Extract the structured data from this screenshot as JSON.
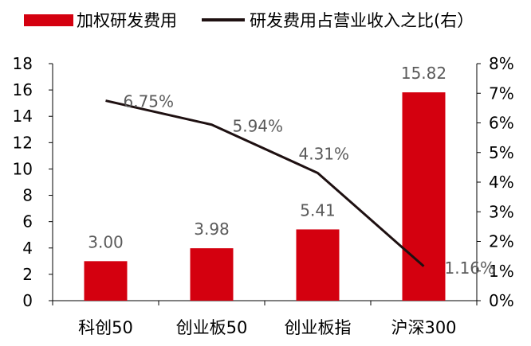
{
  "legend": {
    "bar_label": "加权研发费用",
    "line_label": "研发费用占营业收入之比(右）"
  },
  "colors": {
    "bar": "#d4000f",
    "line": "#1e1011",
    "axis": "#000000",
    "data_label": "#5a5a5a"
  },
  "chart_data": {
    "type": "bar+line",
    "categories": [
      "科创50",
      "创业板50",
      "创业板指",
      "沪深300"
    ],
    "series": [
      {
        "name": "加权研发费用",
        "type": "bar",
        "axis": "left",
        "values": [
          3.0,
          3.98,
          5.41,
          15.82
        ],
        "labels": [
          "3.00",
          "3.98",
          "5.41",
          "15.82"
        ]
      },
      {
        "name": "研发费用占营业收入之比(右）",
        "type": "line",
        "axis": "right",
        "values": [
          6.75,
          5.94,
          4.31,
          1.16
        ],
        "labels": [
          "6.75%",
          "5.94%",
          "4.31%",
          "1.16%"
        ]
      }
    ],
    "y_left": {
      "min": 0,
      "max": 18,
      "ticks": [
        0,
        2,
        4,
        6,
        8,
        10,
        12,
        14,
        16,
        18
      ],
      "tick_labels": [
        "0",
        "2",
        "4",
        "6",
        "8",
        "10",
        "12",
        "14",
        "16",
        "18"
      ]
    },
    "y_right": {
      "min": 0,
      "max": 8,
      "ticks": [
        0,
        1,
        2,
        3,
        4,
        5,
        6,
        7,
        8
      ],
      "tick_labels": [
        "0%",
        "1%",
        "2%",
        "3%",
        "4%",
        "5%",
        "6%",
        "7%",
        "8%"
      ]
    },
    "title": "",
    "xlabel": "",
    "grid": false,
    "legend_position": "top"
  }
}
